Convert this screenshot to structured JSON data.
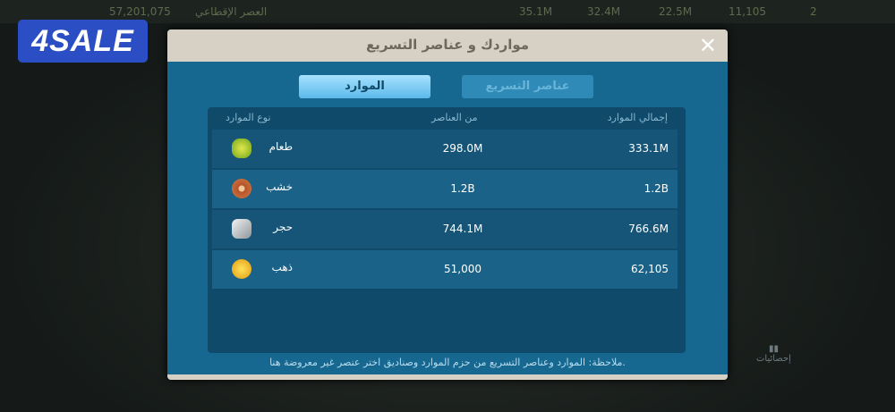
{
  "topbar": {
    "power": "57,201,075",
    "era": "العصر الإقطاعي",
    "food": "35.1M",
    "wood": "32.4M",
    "stone": "22.5M",
    "gold": "11,105",
    "gems": "2"
  },
  "logo": "4SALE",
  "dialog": {
    "title": "مواردك و عناصر التسريع",
    "close": "✕",
    "tabs": [
      {
        "label": "الموارد",
        "active": true
      },
      {
        "label": "عناصر التسريع",
        "active": false
      }
    ],
    "columns": [
      "إجمالي الموارد",
      "من العناصر",
      "نوع الموارد"
    ],
    "rows": [
      {
        "type": "طعام",
        "icon": "corn-icon",
        "from_items": "298.0M",
        "total": "333.1M"
      },
      {
        "type": "خشب",
        "icon": "wood-log-icon",
        "from_items": "1.2B",
        "total": "1.2B"
      },
      {
        "type": "حجر",
        "icon": "stone-icon",
        "from_items": "744.1M",
        "total": "766.6M"
      },
      {
        "type": "ذهب",
        "icon": "gold-coin-icon",
        "from_items": "51,000",
        "total": "62,105"
      }
    ],
    "note": "ملاحظة: الموارد وعناصر التسريع من حزم الموارد وصناديق اختر عنصر غير معروضة هنا."
  },
  "side": {
    "stats_label": "إحصائيات"
  }
}
